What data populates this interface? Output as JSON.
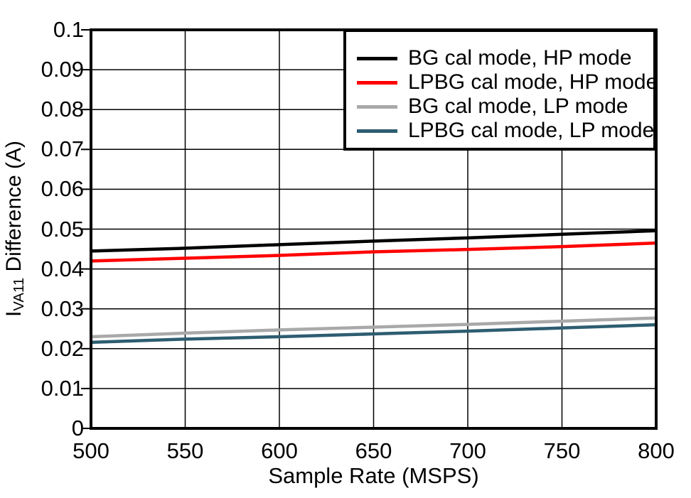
{
  "chart_data": {
    "type": "line",
    "title": "",
    "xlabel": "Sample Rate (MSPS)",
    "ylabel_prefix": "I",
    "ylabel_sub": "VA11",
    "ylabel_rest": " Difference (A)",
    "xlim": [
      500,
      800
    ],
    "ylim": [
      0,
      0.1
    ],
    "x_ticks": [
      "500",
      "550",
      "600",
      "650",
      "700",
      "750",
      "800"
    ],
    "y_ticks": [
      "0",
      "0.01",
      "0.02",
      "0.03",
      "0.04",
      "0.05",
      "0.06",
      "0.07",
      "0.08",
      "0.09",
      "0.1"
    ],
    "grid": true,
    "legend_position": "top-right",
    "frame_color": "#000000",
    "grid_color": "#000000",
    "x": [
      500,
      550,
      600,
      650,
      700,
      750,
      800
    ],
    "series": [
      {
        "name": "BG cal mode, HP mode",
        "color": "#000000",
        "values": [
          0.0445,
          0.0452,
          0.0461,
          0.047,
          0.0478,
          0.0487,
          0.0496
        ]
      },
      {
        "name": "LPBG cal mode, HP mode",
        "color": "#ff0000",
        "values": [
          0.042,
          0.0427,
          0.0434,
          0.0443,
          0.0449,
          0.0456,
          0.0465
        ]
      },
      {
        "name": "BG cal mode, LP mode",
        "color": "#a9a9a9",
        "values": [
          0.023,
          0.0239,
          0.0247,
          0.0254,
          0.0261,
          0.0269,
          0.0277
        ]
      },
      {
        "name": "LPBG cal mode, LP mode",
        "color": "#2d5d71",
        "values": [
          0.0216,
          0.0224,
          0.023,
          0.0237,
          0.0244,
          0.0252,
          0.026
        ]
      }
    ]
  }
}
